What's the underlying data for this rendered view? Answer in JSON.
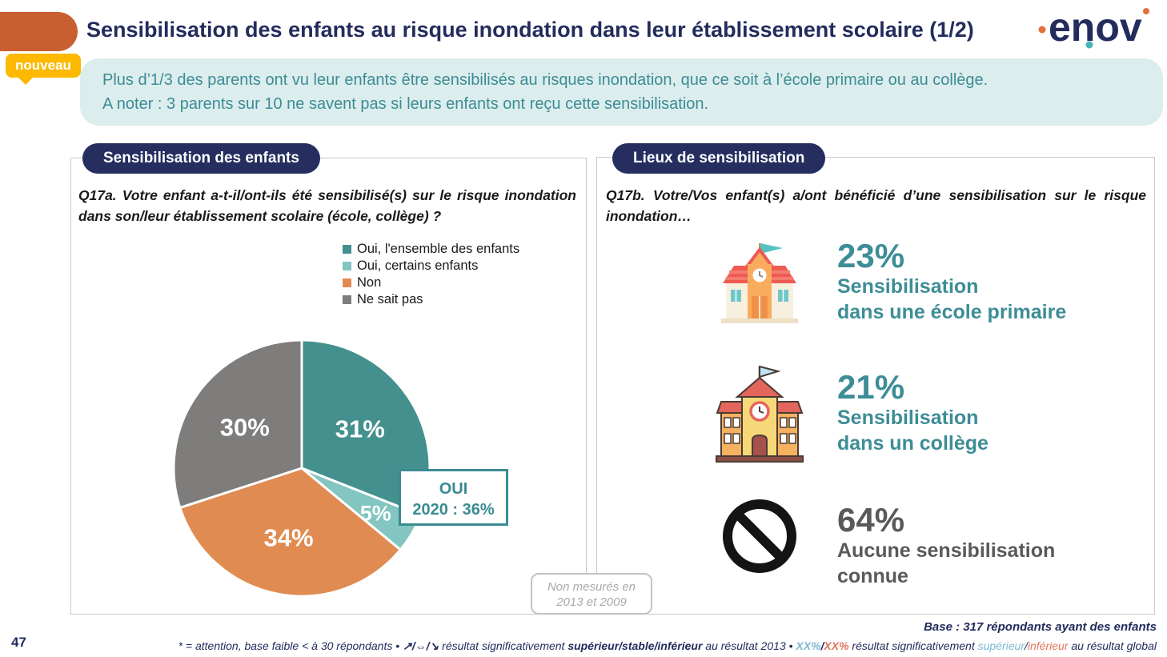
{
  "header": {
    "title": "Sensibilisation des enfants au risque inondation dans leur établissement scolaire (1/2)",
    "badge": "nouveau",
    "logo_text": "enov",
    "callout_line1": "Plus d’1/3 des parents ont vu leur enfants être sensibilisés au risques inondation, que ce soit à l’école primaire ou au collège.",
    "callout_line2": "A noter : 3 parents sur 10 ne savent pas si leurs enfants ont reçu cette sensibilisation."
  },
  "left_panel": {
    "pill": "Sensibilisation des enfants",
    "question": "Q17a. Votre enfant a-t-il/ont-ils été sensibilisé(s) sur le risque inondation dans son/leur établissement scolaire (école, collège) ?"
  },
  "chart_data": {
    "type": "pie",
    "title": "",
    "labels": [
      "Oui, l'ensemble des enfants",
      "Oui, certains enfants",
      "Non",
      "Ne sait pas"
    ],
    "values": [
      31,
      5,
      34,
      30
    ],
    "colors": [
      "#43908E",
      "#82C5C1",
      "#E08B51",
      "#7F7C7C"
    ],
    "label_radius": [
      0.55,
      0.67,
      0.55,
      0.55
    ],
    "start_angle": "top",
    "direction": "clockwise",
    "legend_position": "top-right",
    "annotation": {
      "line1": "OUI",
      "line2": "2020 : 36%"
    },
    "note": {
      "line1": "Non mesurés en",
      "line2": "2013 et 2009"
    }
  },
  "right_panel": {
    "pill": "Lieux de sensibilisation",
    "question": "Q17b. Votre/Vos enfant(s) a/ont bénéficié d’une sensibilisation sur le risque inondation…",
    "stats": [
      {
        "value": "23%",
        "line1": "Sensibilisation",
        "line2": "dans une école primaire",
        "icon": "primary-school-icon",
        "color": "#3D8D96"
      },
      {
        "value": "21%",
        "line1": "Sensibilisation",
        "line2": "dans un collège",
        "icon": "college-icon",
        "color": "#3D8D96"
      },
      {
        "value": "64%",
        "line1": "Aucune sensibilisation",
        "line2": "connue",
        "icon": "no-entry-icon",
        "color": "#58595B"
      }
    ]
  },
  "footer": {
    "page_number": "47",
    "base": "Base : 317 répondants ayant des enfants",
    "footnote": {
      "part1": "* = attention, base faible < à 30 répondants • ",
      "arrows": "↗/⇔/↘",
      "part2": " résultat significativement ",
      "bold1": "supérieur/stable/inférieur",
      "part3": " au résultat 2013 • ",
      "xx_sup": "XX%",
      "slash1": "/",
      "xx_inf": "XX%",
      "part4": " résultat significativement ",
      "sup_word": "supérieur",
      "slash2": "/",
      "inf_word": "inférieur",
      "part5": " au résultat global"
    }
  },
  "colors": {
    "navy": "#232C5C",
    "pill_navy": "#252E5F",
    "teal_text": "#3C8C96",
    "callout_bg": "#DCEDED",
    "orange_tab": "#C95F31",
    "badge_yellow": "#FCB900",
    "oui_box_teal": "#3A8B91",
    "stat_gray": "#58595B",
    "footnote_superior": "#7CB9D1",
    "footnote_inferior": "#E2755C"
  }
}
